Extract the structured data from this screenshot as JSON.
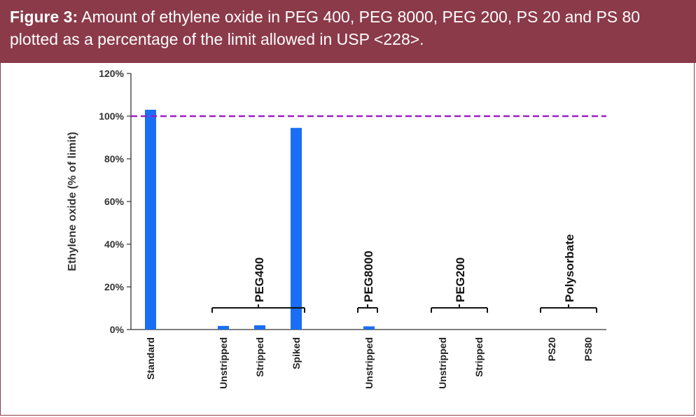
{
  "figure": {
    "label": "Figure 3:",
    "caption": "Amount of ethylene oxide in PEG 400, PEG 8000, PEG 200, PS 20 and PS 80 plotted as a percentage of the limit allowed in USP <228>."
  },
  "colors": {
    "header_bg": "#8b3a49",
    "bar": "#1a6ef5",
    "limit_line": "#9b1fc4",
    "axis": "#333333"
  },
  "chart_data": {
    "type": "bar",
    "ylabel": "Ethylene oxide (% of limit)",
    "ylim": [
      0,
      120
    ],
    "yticks": [
      0,
      20,
      40,
      60,
      80,
      100,
      120
    ],
    "ytick_suffix": "%",
    "limit_line": 100,
    "categories": [
      "Standard",
      "Unstripped",
      "Stripped",
      "Spiked",
      "Unstripped",
      "Unstripped",
      "Stripped",
      "PS20",
      "PS80"
    ],
    "values": [
      103,
      1.7,
      2,
      94.5,
      1.5,
      0,
      0,
      0,
      0
    ],
    "groups": [
      {
        "label": "PEG400",
        "members": [
          1,
          2,
          3
        ]
      },
      {
        "label": "PEG8000",
        "members": [
          4
        ]
      },
      {
        "label": "PEG200",
        "members": [
          5,
          6
        ]
      },
      {
        "label": "Polysorbate",
        "members": [
          7,
          8
        ]
      }
    ]
  }
}
